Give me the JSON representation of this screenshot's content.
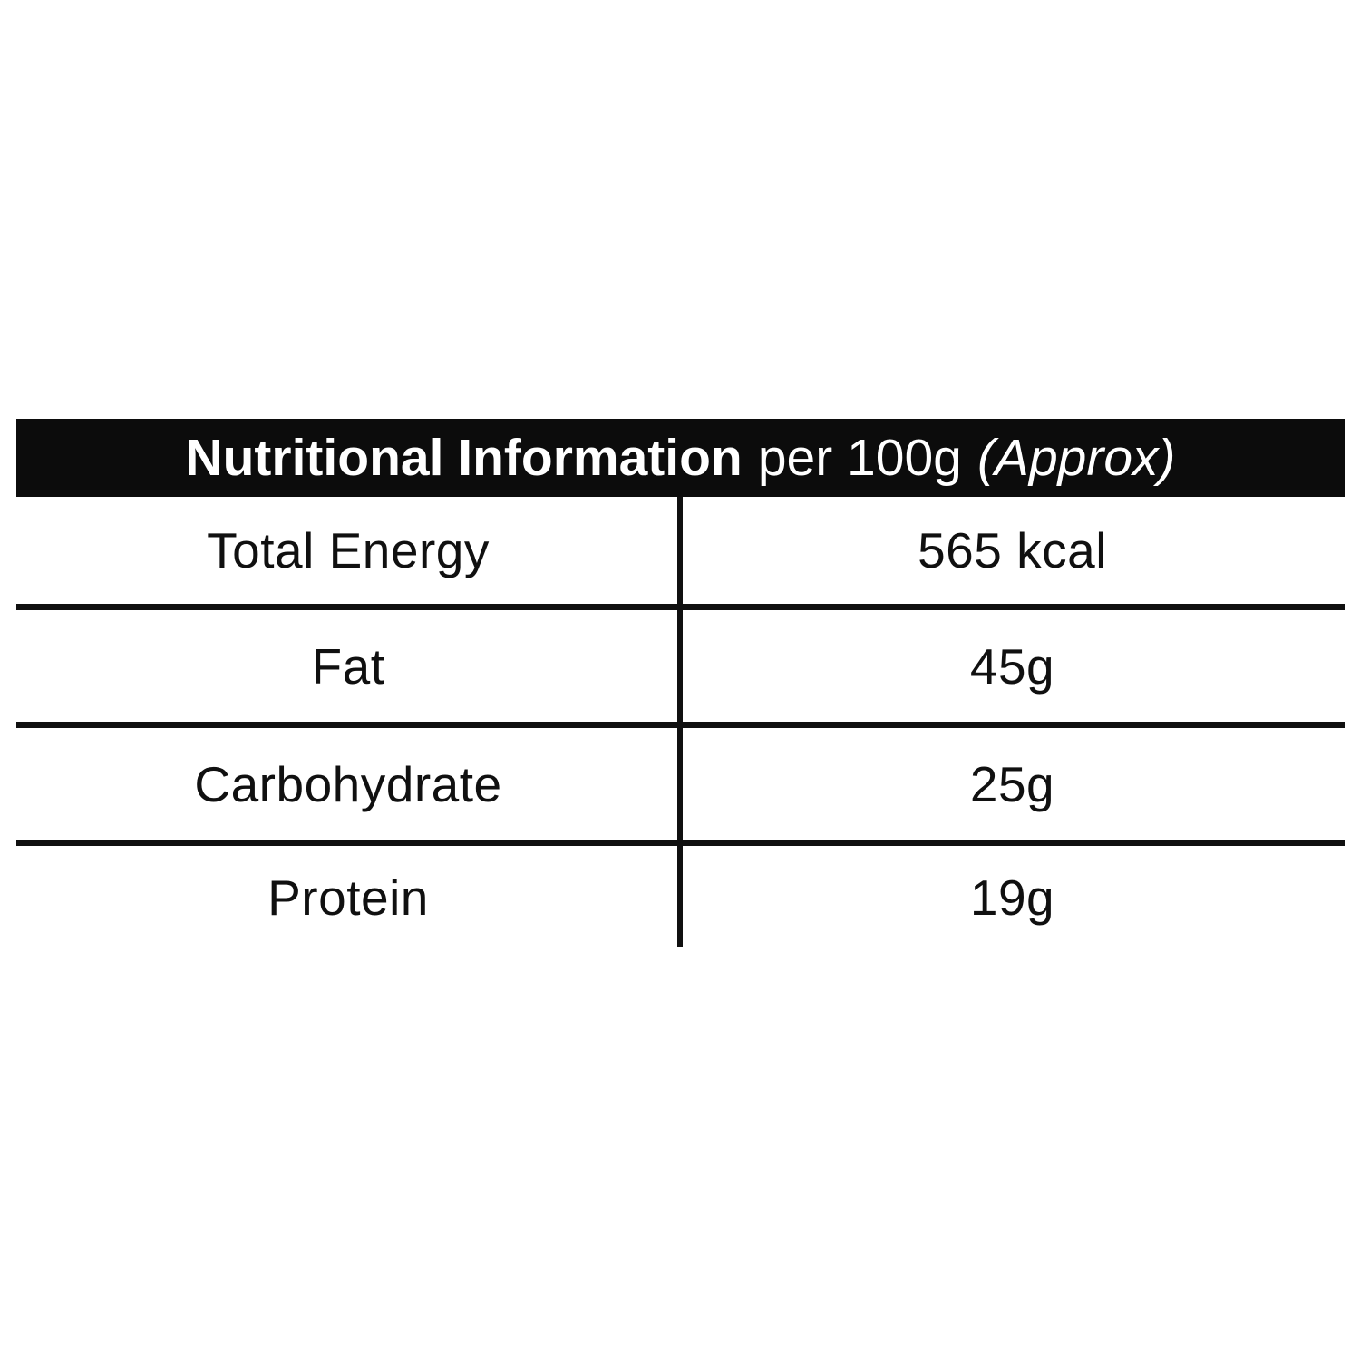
{
  "header": {
    "title_bold": "Nutritional Information",
    "title_regular": "per 100g",
    "title_italic": "(Approx)"
  },
  "table": {
    "rows": [
      {
        "label": "Total Energy",
        "value": "565 kcal"
      },
      {
        "label": "Fat",
        "value": "45g"
      },
      {
        "label": "Carbohydrate",
        "value": "25g"
      },
      {
        "label": "Protein",
        "value": "19g"
      }
    ]
  },
  "colors": {
    "header_background": "#0c0c0c",
    "header_text": "#ffffff",
    "body_text": "#101010",
    "rule_lines": "#101010",
    "page_background": "#ffffff"
  }
}
